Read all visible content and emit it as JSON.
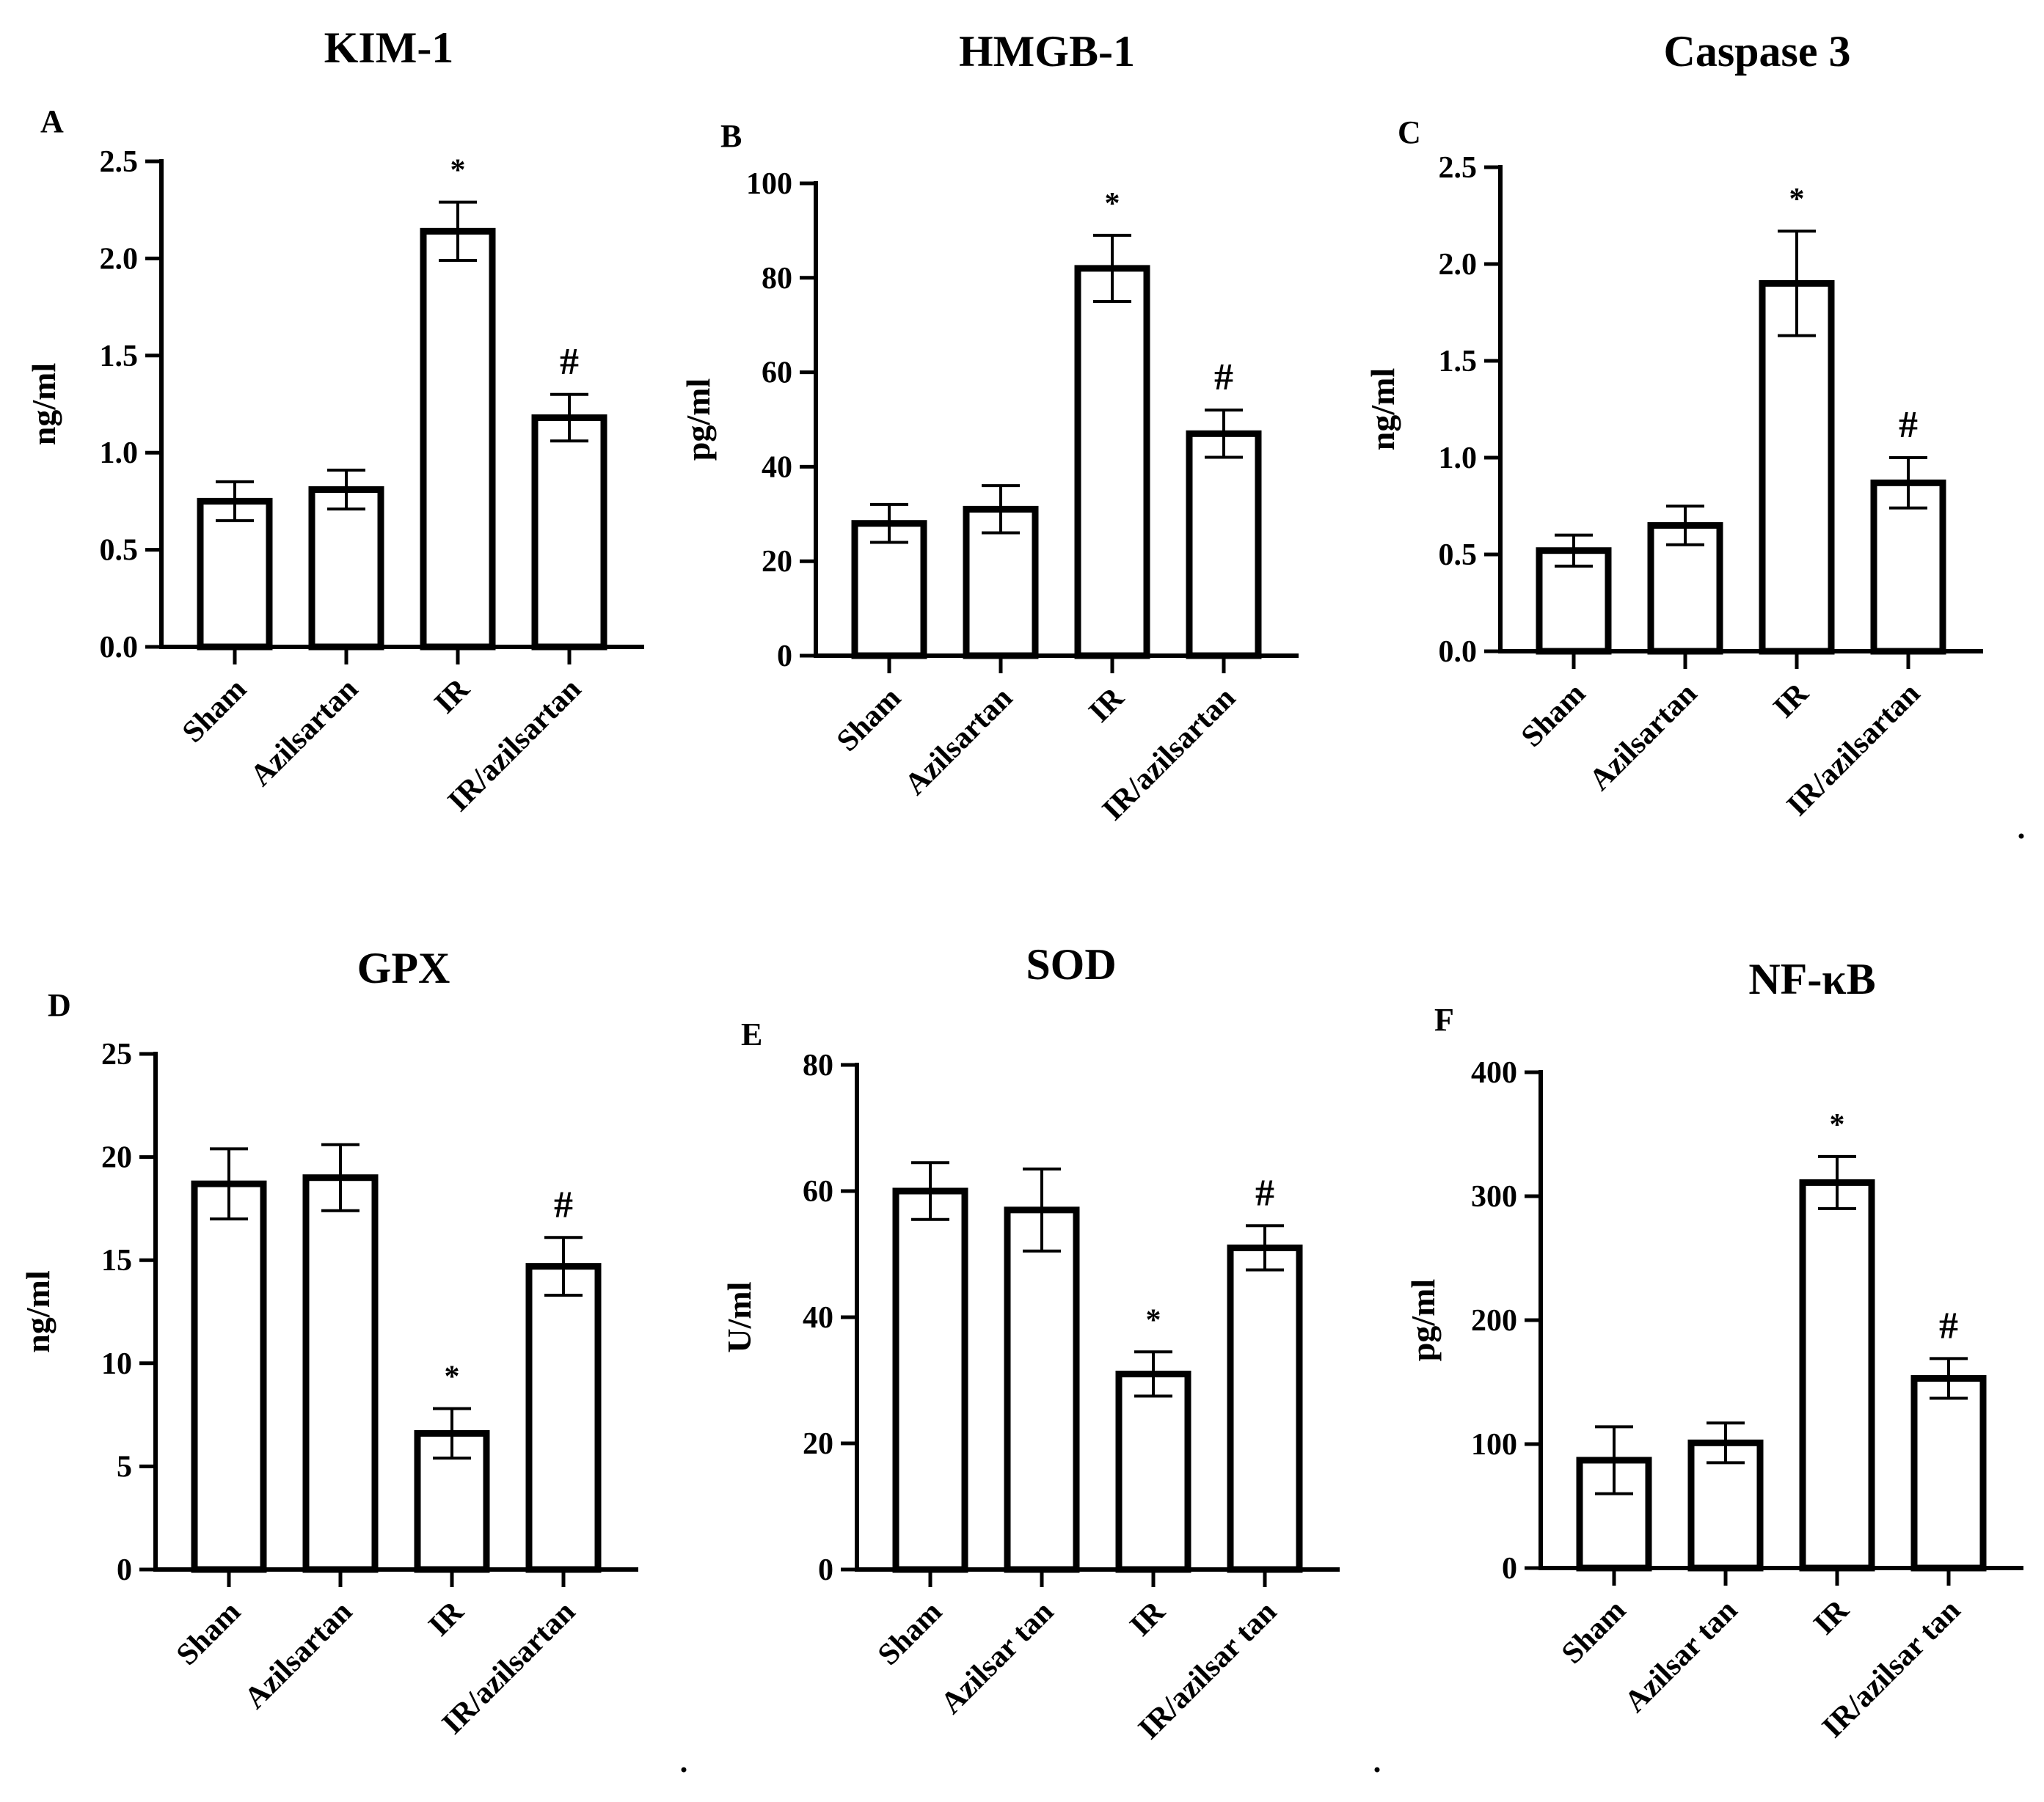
{
  "chart_data": [
    {
      "type": "bar",
      "panel": "A",
      "title": "KIM-1",
      "ylabel": "ng/ml",
      "categories": [
        "Sham",
        "Azilsartan",
        "IR",
        "IR/azilsartan"
      ],
      "values": [
        0.75,
        0.81,
        2.14,
        1.18
      ],
      "errors": [
        0.1,
        0.1,
        0.15,
        0.12
      ],
      "significance": [
        "",
        "",
        "*",
        "#"
      ],
      "ylim": [
        0,
        2.5
      ],
      "yticks": [
        0,
        0.5,
        1.0,
        1.5,
        2.0,
        2.5
      ],
      "ytick_labels": [
        "0.0",
        "0.5",
        "1.0",
        "1.5",
        "2.0",
        "2.5"
      ]
    },
    {
      "type": "bar",
      "panel": "B",
      "title": "HMGB-1",
      "ylabel": "pg/ml",
      "categories": [
        "Sham",
        "Azilsartan",
        "IR",
        "IR/azilsartan"
      ],
      "values": [
        28,
        31,
        82,
        47
      ],
      "errors": [
        4,
        5,
        7,
        5
      ],
      "significance": [
        "",
        "",
        "*",
        "#"
      ],
      "ylim": [
        0,
        100
      ],
      "yticks": [
        0,
        20,
        40,
        60,
        80,
        100
      ],
      "ytick_labels": [
        "0",
        "20",
        "40",
        "60",
        "80",
        "100"
      ]
    },
    {
      "type": "bar",
      "panel": "C",
      "title": "Caspase 3",
      "ylabel": "ng/ml",
      "categories": [
        "Sham",
        "Azilsartan",
        "IR",
        "IR/azilsartan"
      ],
      "values": [
        0.52,
        0.65,
        1.9,
        0.87
      ],
      "errors": [
        0.08,
        0.1,
        0.27,
        0.13
      ],
      "significance": [
        "",
        "",
        "*",
        "#"
      ],
      "ylim": [
        0,
        2.5
      ],
      "yticks": [
        0,
        0.5,
        1.0,
        1.5,
        2.0,
        2.5
      ],
      "ytick_labels": [
        "0.0",
        "0.5",
        "1.0",
        "1.5",
        "2.0",
        "2.5"
      ]
    },
    {
      "type": "bar",
      "panel": "D",
      "title": "GPX",
      "ylabel": "ng/ml",
      "categories": [
        "Sham",
        "Azilsartan",
        "IR",
        "IR/azilsartan"
      ],
      "values": [
        18.7,
        19.0,
        6.6,
        14.7
      ],
      "errors": [
        1.7,
        1.6,
        1.2,
        1.4
      ],
      "significance": [
        "",
        "",
        "*",
        "#"
      ],
      "ylim": [
        0,
        25
      ],
      "yticks": [
        0,
        5,
        10,
        15,
        20,
        25
      ],
      "ytick_labels": [
        "0",
        "5",
        "10",
        "15",
        "20",
        "25"
      ]
    },
    {
      "type": "bar",
      "panel": "E",
      "title": "SOD",
      "ylabel": "U/ml",
      "categories": [
        "Sham",
        "Azilsartan",
        "IR",
        "IR/azilsartan"
      ],
      "categories_display": [
        "Sham",
        "Azilsar tan",
        "IR",
        "IR/azilsar tan"
      ],
      "values": [
        60,
        57,
        31,
        51
      ],
      "errors": [
        4.5,
        6.5,
        3.5,
        3.5
      ],
      "significance": [
        "",
        "",
        "*",
        "#"
      ],
      "ylim": [
        0,
        80
      ],
      "yticks": [
        0,
        20,
        40,
        60,
        80
      ],
      "ytick_labels": [
        "0",
        "20",
        "40",
        "60",
        "80"
      ]
    },
    {
      "type": "bar",
      "panel": "F",
      "title": "NF-κB",
      "ylabel": "pg/ml",
      "categories": [
        "Sham",
        "Azilsartan",
        "IR",
        "IR/azilsartan"
      ],
      "categories_display": [
        "Sham",
        "Azilsar tan",
        "IR",
        "IR/azilsar tan"
      ],
      "values": [
        87,
        101,
        311,
        153
      ],
      "errors": [
        27,
        16,
        21,
        16
      ],
      "significance": [
        "",
        "",
        "*",
        "#"
      ],
      "ylim": [
        0,
        400
      ],
      "yticks": [
        0,
        100,
        200,
        300,
        400
      ],
      "ytick_labels": [
        "0",
        "100",
        "200",
        "300",
        "400"
      ]
    }
  ]
}
